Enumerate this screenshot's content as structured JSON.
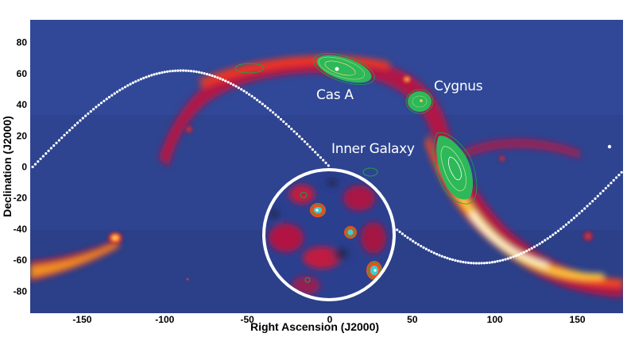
{
  "chart_data": {
    "type": "heatmap",
    "title": "",
    "xlabel": "Right Ascension (J2000)",
    "ylabel": "Declination (J2000)",
    "xlim": [
      -180,
      180
    ],
    "ylim": [
      -90,
      90
    ],
    "x_ticks": [
      -150,
      -100,
      -50,
      0,
      50,
      100,
      150
    ],
    "y_ticks": [
      80,
      60,
      40,
      20,
      0,
      -20,
      -40,
      -60,
      -80
    ],
    "colormap": [
      "#2b3f8f",
      "#3a4fa0",
      "#c0103a",
      "#ff3a1a",
      "#ffb020",
      "#ffffe0"
    ],
    "labels": [
      {
        "text": "Cas A",
        "ra": 8,
        "dec": 45
      },
      {
        "text": "Cygnus",
        "ra": 64,
        "dec": 47
      },
      {
        "text": "Inner Galaxy",
        "ra": 28,
        "dec": 10
      }
    ],
    "contour_regions": [
      {
        "name": "Cas A",
        "ra": 10,
        "dec": 59
      },
      {
        "name": "Cygnus",
        "ra": 55,
        "dec": 40
      },
      {
        "name": "Inner Galaxy",
        "ra": 73,
        "dec": 0
      },
      {
        "name": "",
        "ra": 25,
        "dec": -3
      },
      {
        "name": "",
        "ra": -50,
        "dec": 59
      }
    ],
    "equator_curve": "celestial path (white dotted)",
    "inset": "zoomed circular region"
  },
  "colors": {
    "background": "#2e4490",
    "contour": "#1aa34a",
    "contour_fill": "#2db85a",
    "inset_border": "#ffffff",
    "dots": "#ffffff"
  }
}
